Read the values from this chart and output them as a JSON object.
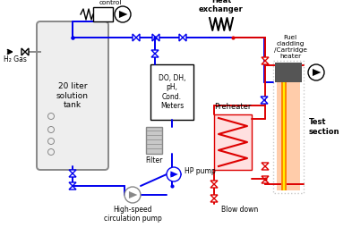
{
  "bg": "#ffffff",
  "blue": "#0000ee",
  "red": "#dd0000",
  "gray": "#888888",
  "lgray": "#c8c8c8",
  "dgray": "#555555",
  "orange": "#ff8800",
  "yellow": "#ffee00",
  "dark_orange": "#cc4400",
  "pink_bg": "#ffe0e0",
  "tank_bg": "#e8e8e8",
  "labels": {
    "h2gas": "H₂ Gas",
    "gas_over": "Gas overpressure\ncontrol",
    "tank": "20 liter\nsolution\ntank",
    "do_dh": "DO, DH,\npH,\nCond.\nMeters",
    "filter": "Filter",
    "hp_pump": "HP pump",
    "hs_pump": "High-speed\ncirculation pump",
    "heat_ex": "Heat\nexchanger",
    "preheater": "Preheater",
    "blowdown": "Blow down",
    "fuel": "Fuel\ncladding\n/Cartridge\nheater",
    "test": "Test\nsection"
  }
}
